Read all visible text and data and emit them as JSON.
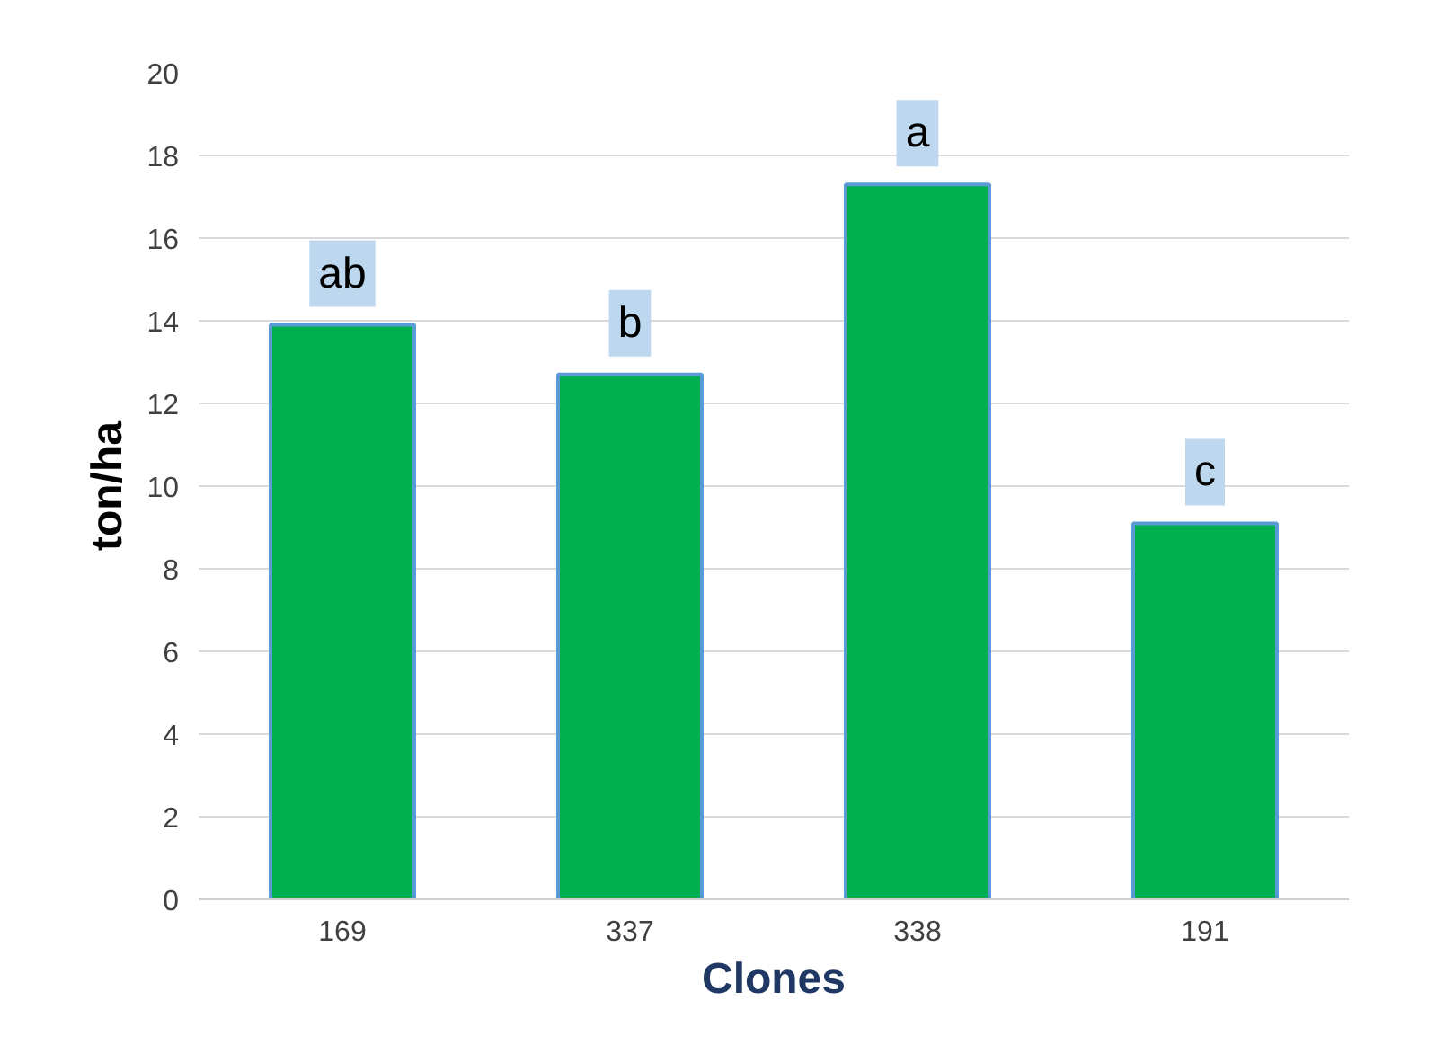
{
  "chart_data": {
    "type": "bar",
    "xlabel": "Clones",
    "ylabel": "ton/ha",
    "categories": [
      "169",
      "337",
      "338",
      "191"
    ],
    "values": [
      13.9,
      12.7,
      17.3,
      9.1
    ],
    "color": "#00b050",
    "ylim": [
      0,
      20
    ],
    "yticks": [
      0,
      2,
      4,
      6,
      8,
      10,
      12,
      14,
      16,
      18,
      20
    ],
    "grid": "y",
    "annotations": [
      {
        "text": "ab",
        "x": "169",
        "y": 13.9
      },
      {
        "text": "b",
        "x": "337",
        "y": 12.7
      },
      {
        "text": "a",
        "x": "338",
        "y": 17.3
      },
      {
        "text": "c",
        "x": "191",
        "y": 9.1
      }
    ]
  }
}
